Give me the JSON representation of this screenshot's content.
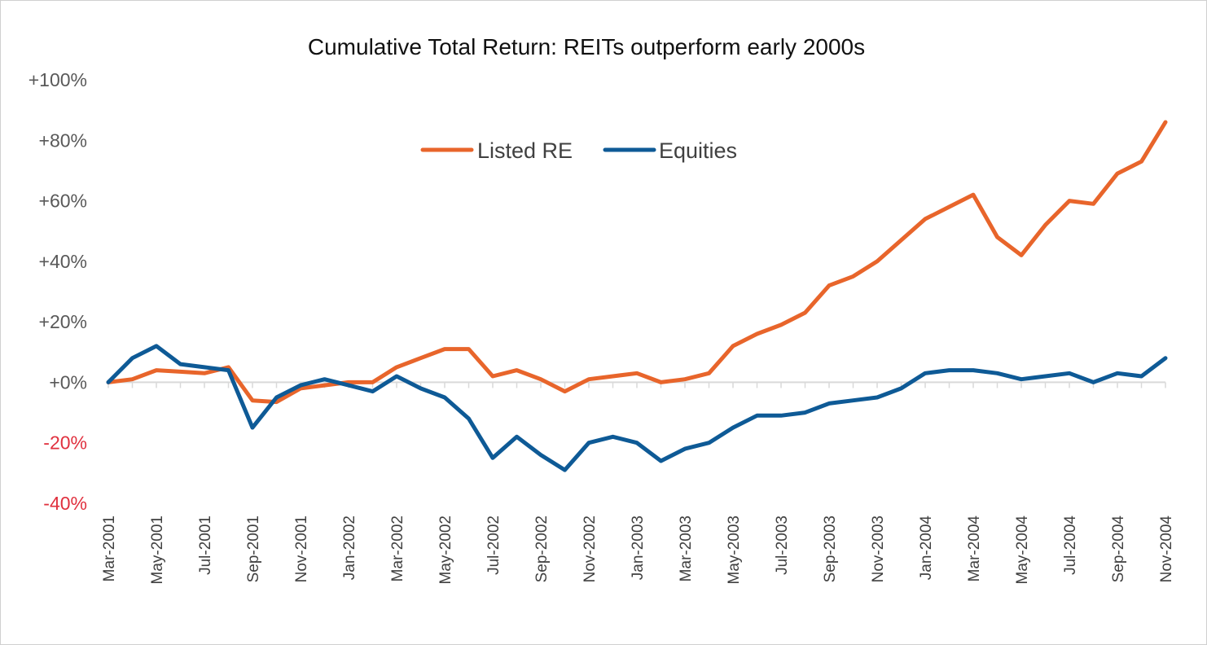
{
  "chart_data": {
    "type": "line",
    "title": "Cumulative Total Return: REITs outperform early 2000s",
    "xlabel": "",
    "ylabel": "",
    "ylim": [
      -40,
      100
    ],
    "yticks": [
      {
        "value": 100,
        "label": "+100%"
      },
      {
        "value": 80,
        "label": "+80%"
      },
      {
        "value": 60,
        "label": "+60%"
      },
      {
        "value": 40,
        "label": "+40%"
      },
      {
        "value": 20,
        "label": "+20%"
      },
      {
        "value": 0,
        "label": "+0%"
      },
      {
        "value": -20,
        "label": "-20%"
      },
      {
        "value": -40,
        "label": "-40%"
      }
    ],
    "x_start": "2001-03",
    "x_end": "2004-11",
    "xticks": [
      "Mar-2001",
      "May-2001",
      "Jul-2001",
      "Sep-2001",
      "Nov-2001",
      "Jan-2002",
      "Mar-2002",
      "May-2002",
      "Jul-2002",
      "Sep-2002",
      "Nov-2002",
      "Jan-2003",
      "Mar-2003",
      "May-2003",
      "Jul-2003",
      "Sep-2003",
      "Nov-2003",
      "Jan-2004",
      "Mar-2004",
      "May-2004",
      "Jul-2004",
      "Sep-2004",
      "Nov-2004"
    ],
    "legend_position": "top-center",
    "grid": false,
    "negative_tick_color": "#e0303e",
    "series": [
      {
        "name": "Listed RE",
        "color": "#e8652b",
        "points": [
          [
            "2001-03",
            0
          ],
          [
            "2001-04",
            1
          ],
          [
            "2001-05",
            4
          ],
          [
            "2001-06",
            3.5
          ],
          [
            "2001-07",
            3
          ],
          [
            "2001-08",
            5
          ],
          [
            "2001-09",
            -6
          ],
          [
            "2001-10",
            -6.5
          ],
          [
            "2001-11",
            -2
          ],
          [
            "2001-12",
            -1
          ],
          [
            "2002-01",
            0
          ],
          [
            "2002-02",
            0
          ],
          [
            "2002-03",
            5
          ],
          [
            "2002-04",
            8
          ],
          [
            "2002-05",
            11
          ],
          [
            "2002-06",
            11
          ],
          [
            "2002-07",
            2
          ],
          [
            "2002-08",
            4
          ],
          [
            "2002-09",
            1
          ],
          [
            "2002-10",
            -3
          ],
          [
            "2002-11",
            1
          ],
          [
            "2002-12",
            2
          ],
          [
            "2003-01",
            3
          ],
          [
            "2003-02",
            0
          ],
          [
            "2003-03",
            1
          ],
          [
            "2003-04",
            3
          ],
          [
            "2003-05",
            12
          ],
          [
            "2003-06",
            16
          ],
          [
            "2003-07",
            19
          ],
          [
            "2003-08",
            23
          ],
          [
            "2003-09",
            32
          ],
          [
            "2003-10",
            35
          ],
          [
            "2003-11",
            40
          ],
          [
            "2003-12",
            47
          ],
          [
            "2004-01",
            54
          ],
          [
            "2004-02",
            58
          ],
          [
            "2004-03",
            62
          ],
          [
            "2004-04",
            48
          ],
          [
            "2004-05",
            42
          ],
          [
            "2004-06",
            52
          ],
          [
            "2004-07",
            60
          ],
          [
            "2004-08",
            59
          ],
          [
            "2004-09",
            69
          ],
          [
            "2004-10",
            73
          ],
          [
            "2004-11",
            86
          ]
        ]
      },
      {
        "name": "Equities",
        "color": "#0e5a96",
        "points": [
          [
            "2001-03",
            0
          ],
          [
            "2001-04",
            8
          ],
          [
            "2001-05",
            12
          ],
          [
            "2001-06",
            6
          ],
          [
            "2001-07",
            5
          ],
          [
            "2001-08",
            4
          ],
          [
            "2001-09",
            -15
          ],
          [
            "2001-10",
            -5
          ],
          [
            "2001-11",
            -1
          ],
          [
            "2001-12",
            1
          ],
          [
            "2002-01",
            -1
          ],
          [
            "2002-02",
            -3
          ],
          [
            "2002-03",
            2
          ],
          [
            "2002-04",
            -2
          ],
          [
            "2002-05",
            -5
          ],
          [
            "2002-06",
            -12
          ],
          [
            "2002-07",
            -25
          ],
          [
            "2002-08",
            -18
          ],
          [
            "2002-09",
            -24
          ],
          [
            "2002-10",
            -29
          ],
          [
            "2002-11",
            -20
          ],
          [
            "2002-12",
            -18
          ],
          [
            "2003-01",
            -20
          ],
          [
            "2003-02",
            -26
          ],
          [
            "2003-03",
            -22
          ],
          [
            "2003-04",
            -20
          ],
          [
            "2003-05",
            -15
          ],
          [
            "2003-06",
            -11
          ],
          [
            "2003-07",
            -11
          ],
          [
            "2003-08",
            -10
          ],
          [
            "2003-09",
            -7
          ],
          [
            "2003-10",
            -6
          ],
          [
            "2003-11",
            -5
          ],
          [
            "2003-12",
            -2
          ],
          [
            "2004-01",
            3
          ],
          [
            "2004-02",
            4
          ],
          [
            "2004-03",
            4
          ],
          [
            "2004-04",
            3
          ],
          [
            "2004-05",
            1
          ],
          [
            "2004-06",
            2
          ],
          [
            "2004-07",
            3
          ],
          [
            "2004-08",
            0
          ],
          [
            "2004-09",
            3
          ],
          [
            "2004-10",
            2
          ],
          [
            "2004-11",
            8
          ]
        ]
      }
    ]
  }
}
